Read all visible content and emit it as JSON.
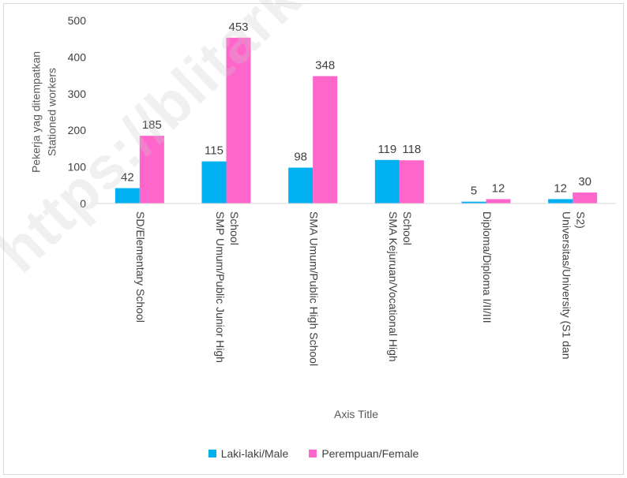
{
  "chart_data": {
    "type": "bar",
    "title": "",
    "xlabel": "Axis Title",
    "ylabel_lines": [
      "Pekerja yag ditempatkan",
      "Stationed workers"
    ],
    "ylim": [
      0,
      500
    ],
    "yticks": [
      0,
      100,
      200,
      300,
      400,
      500
    ],
    "grid": false,
    "legend_position": "bottom",
    "categories": [
      [
        "SD/Elementary School"
      ],
      [
        "SMP Umum/Public Junior High",
        "School"
      ],
      [
        "SMA Umum/Public High School"
      ],
      [
        "SMA Kejuruan/Vocational High",
        "School"
      ],
      [
        "Diploma/Diploma I/II/III"
      ],
      [
        "Universitas/University (S1 dan",
        "S2)"
      ]
    ],
    "series": [
      {
        "name": "Laki-laki/Male",
        "color": "#00b0f0",
        "values": [
          42,
          115,
          98,
          119,
          5,
          12
        ]
      },
      {
        "name": "Perempuan/Female",
        "color": "#ff66cc",
        "values": [
          185,
          453,
          348,
          118,
          12,
          30
        ]
      }
    ]
  },
  "watermark": "https://blitarkab.bps.go.id"
}
